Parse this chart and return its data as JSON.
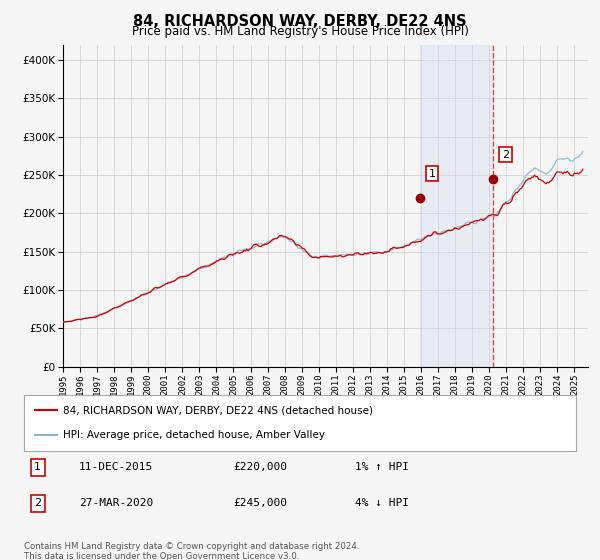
{
  "title": "84, RICHARDSON WAY, DERBY, DE22 4NS",
  "subtitle": "Price paid vs. HM Land Registry's House Price Index (HPI)",
  "hpi_color": "#8ab4d4",
  "price_color": "#cc0000",
  "marker_color": "#990000",
  "background_color": "#f5f5f5",
  "grid_color": "#cccccc",
  "shade_color": "#c8d8ee",
  "dashed_line_color": "#dd4444",
  "transaction1_date": 2015.95,
  "transaction1_price": 220000,
  "transaction1_label": "1",
  "transaction2_date": 2020.24,
  "transaction2_price": 245000,
  "transaction2_label": "2",
  "legend_line1": "84, RICHARDSON WAY, DERBY, DE22 4NS (detached house)",
  "legend_line2": "HPI: Average price, detached house, Amber Valley",
  "note1_num": "1",
  "note1_date": "11-DEC-2015",
  "note1_price": "£220,000",
  "note1_detail": "1% ↑ HPI",
  "note2_num": "2",
  "note2_date": "27-MAR-2020",
  "note2_price": "£245,000",
  "note2_detail": "4% ↓ HPI",
  "footer": "Contains HM Land Registry data © Crown copyright and database right 2024.\nThis data is licensed under the Open Government Licence v3.0.",
  "ylim": [
    0,
    420000
  ],
  "xlim_start": 1995.0,
  "xlim_end": 2025.8
}
